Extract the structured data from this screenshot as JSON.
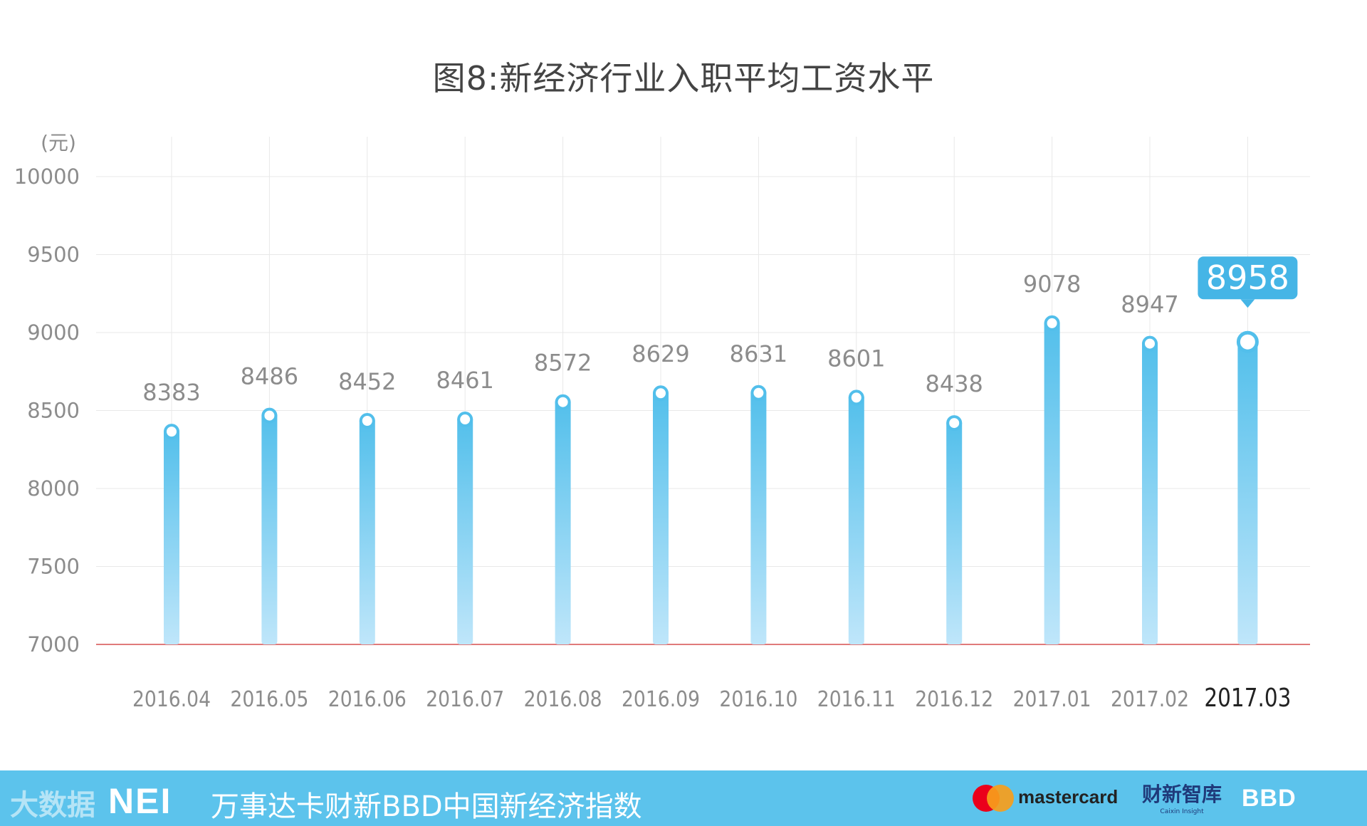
{
  "chart_data": {
    "type": "bar",
    "title": "图8:新经济行业入职平均工资水平",
    "ylabel": "(元)",
    "xlabel": "",
    "ylim": [
      7000,
      10000
    ],
    "yticks": [
      10000,
      9500,
      9000,
      8500,
      8000,
      7500,
      7000
    ],
    "categories": [
      "2016.04",
      "2016.05",
      "2016.06",
      "2016.07",
      "2016.08",
      "2016.09",
      "2016.10",
      "2016.11",
      "2016.12",
      "2017.01",
      "2017.02",
      "2017.03"
    ],
    "values": [
      8383,
      8486,
      8452,
      8461,
      8572,
      8629,
      8631,
      8601,
      8438,
      9078,
      8947,
      8958
    ],
    "highlight_index": 11,
    "grid": true,
    "colors": {
      "bar_top": "#52bfeb",
      "bar_bottom": "#bfe6fa",
      "highlight_box": "#45b5e6",
      "baseline": "#e07a7a",
      "grid": "#e8e8e8",
      "label": "#8c8c8c"
    }
  },
  "footer": {
    "watermark": "大数据",
    "brand_logo": "NEI",
    "index_name": "万事达卡财新BBD中国新经济指数",
    "mastercard": "mastercard",
    "caixin_cn": "财新智库",
    "caixin_en": "Caixin Insight",
    "bbd": "BBD"
  }
}
